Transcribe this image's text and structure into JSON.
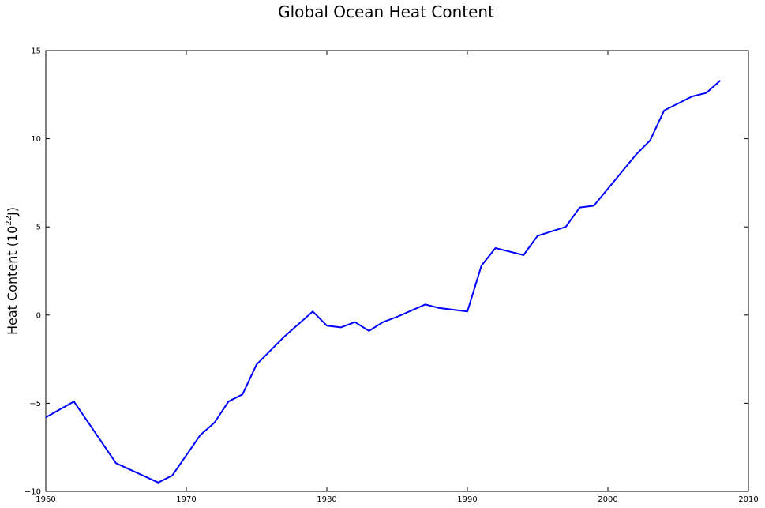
{
  "chart_data": {
    "type": "line",
    "title": "Global Ocean Heat Content",
    "xlabel": "",
    "ylabel": "Heat Content (10",
    "ylabel_sup": "22",
    "ylabel_unit": "J)",
    "xlim": [
      1960,
      2010
    ],
    "ylim": [
      -10,
      15
    ],
    "xticks": [
      1960,
      1970,
      1980,
      1990,
      2000,
      2010
    ],
    "yticks": [
      -10,
      -5,
      0,
      5,
      10,
      15
    ],
    "ytick_labels": [
      "−10",
      "−5",
      "0",
      "5",
      "10",
      "15"
    ],
    "grid": false,
    "line_color": "#0000ff",
    "series": [
      {
        "x": [
          1960,
          1962,
          1965,
          1968,
          1969,
          1971,
          1972,
          1973,
          1974,
          1975,
          1977,
          1979,
          1980,
          1981,
          1982,
          1983,
          1984,
          1985,
          1987,
          1988,
          1990,
          1991,
          1992,
          1994,
          1995,
          1997,
          1998,
          1999,
          2002,
          2003,
          2004,
          2006,
          2007,
          2008
        ],
        "values": [
          -5.8,
          -4.9,
          -8.4,
          -9.5,
          -9.1,
          -6.8,
          -6.1,
          -4.9,
          -4.5,
          -2.8,
          -1.2,
          0.2,
          -0.6,
          -0.7,
          -0.4,
          -0.9,
          -0.4,
          -0.1,
          0.6,
          0.4,
          0.2,
          2.8,
          3.8,
          3.4,
          4.5,
          5.0,
          6.1,
          6.2,
          9.1,
          9.9,
          11.6,
          12.4,
          12.6,
          13.3
        ]
      }
    ]
  }
}
